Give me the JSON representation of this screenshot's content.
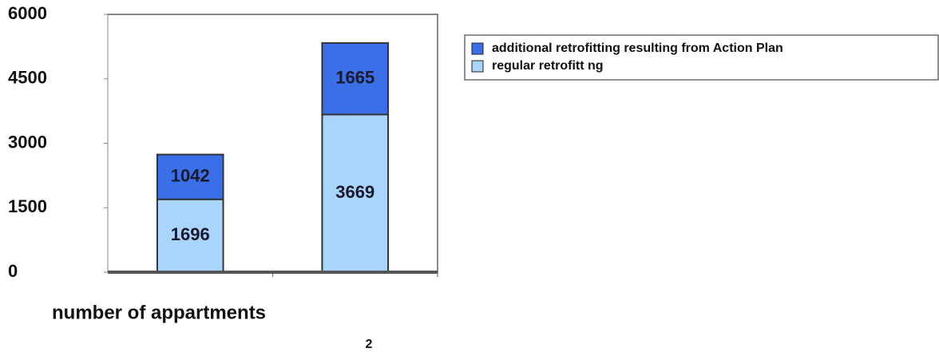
{
  "chart_data": {
    "type": "stacked_bar",
    "x_label": "number of appartments",
    "categories": [
      null,
      null
    ],
    "series": [
      {
        "name": "regular retrofitt ng",
        "color": "#a9d4fb",
        "values": [
          1696,
          3669
        ]
      },
      {
        "name": "additional retrofitting resulting from Action Plan",
        "color": "#3a6fe8",
        "values": [
          1042,
          1665
        ]
      }
    ],
    "ylim": [
      0,
      6000
    ],
    "yticks": [
      0,
      1500,
      3000,
      4500,
      6000
    ]
  },
  "page_number": "2"
}
